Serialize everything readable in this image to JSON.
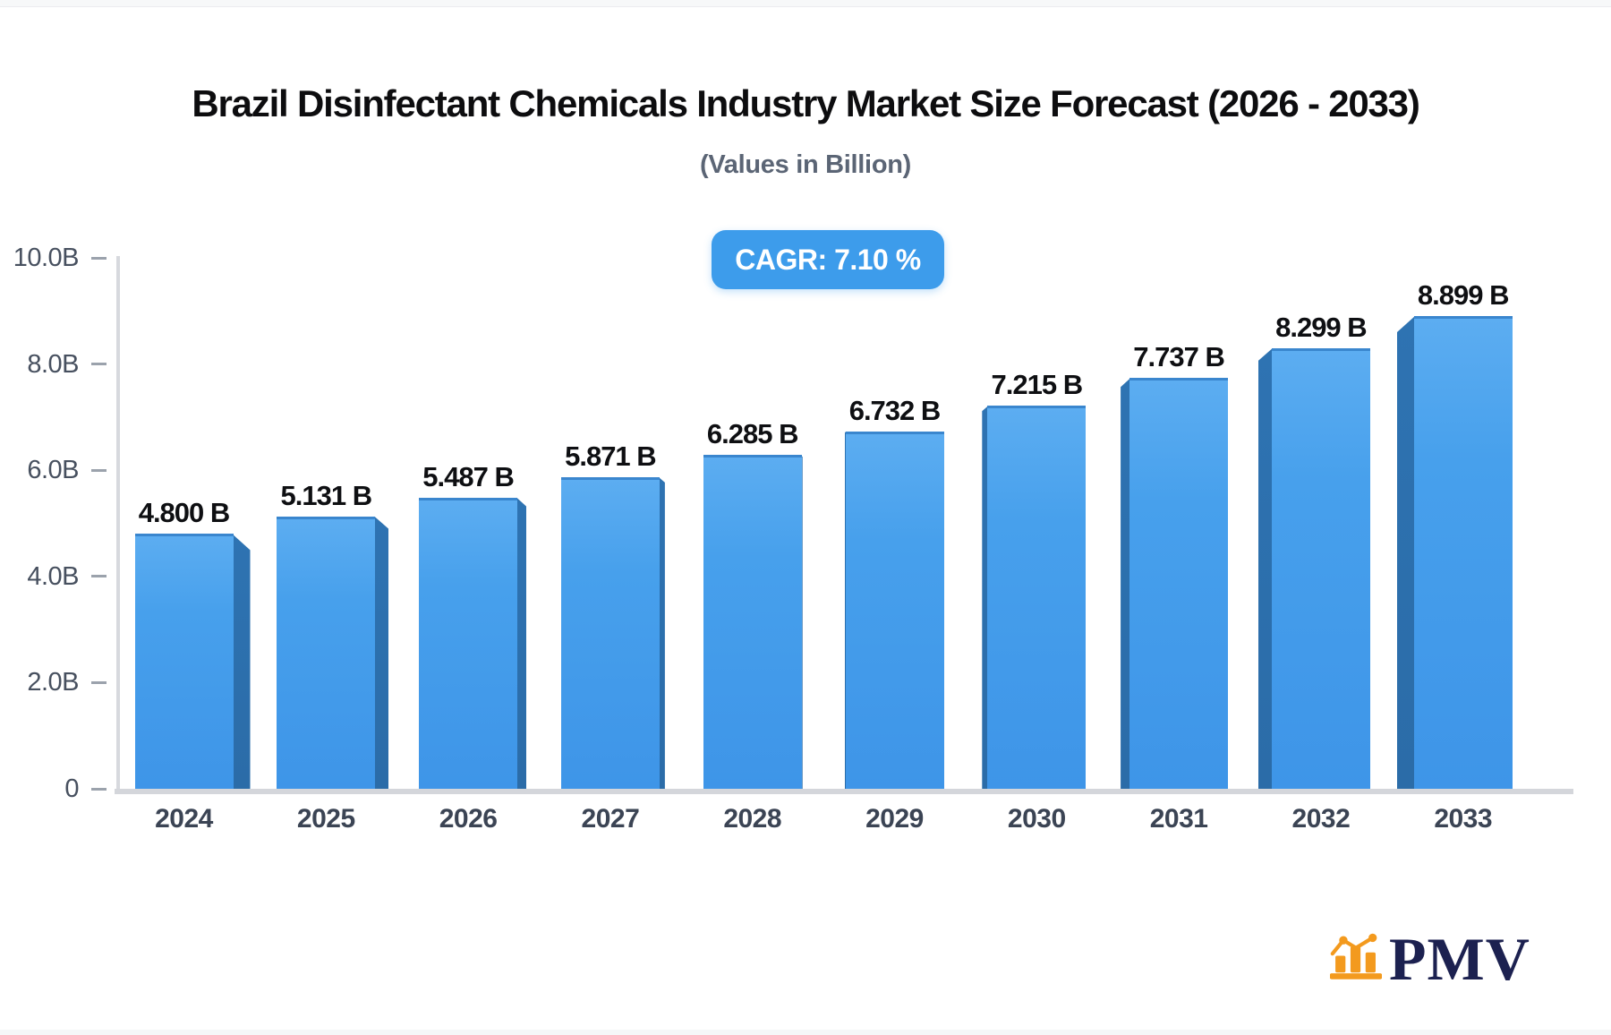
{
  "header": {
    "title": "Brazil Disinfectant Chemicals Industry Market Size Forecast (2026 - 2033)",
    "subtitle": "(Values in Billion)",
    "cagr_label": "CAGR: 7.10 %"
  },
  "chart_data": {
    "type": "bar",
    "title": "Brazil Disinfectant Chemicals Industry Market Size Forecast (2026 - 2033)",
    "subtitle": "(Values in Billion)",
    "annotation": "CAGR: 7.10 %",
    "categories": [
      "2024",
      "2025",
      "2026",
      "2027",
      "2028",
      "2029",
      "2030",
      "2031",
      "2032",
      "2033"
    ],
    "values": [
      4.8,
      5.131,
      5.487,
      5.871,
      6.285,
      6.732,
      7.215,
      7.737,
      8.299,
      8.899
    ],
    "value_labels": [
      "4.800 B",
      "5.131 B",
      "5.487 B",
      "5.871 B",
      "6.285 B",
      "6.732 B",
      "7.215 B",
      "7.737 B",
      "8.299 B",
      "8.899 B"
    ],
    "xlabel": "",
    "ylabel": "",
    "ylim": [
      0,
      10
    ],
    "yticks": [
      {
        "value": 0,
        "label": "0"
      },
      {
        "value": 2,
        "label": "2.0B"
      },
      {
        "value": 4,
        "label": "4.0B"
      },
      {
        "value": 6,
        "label": "6.0B"
      },
      {
        "value": 8,
        "label": "8.0B"
      },
      {
        "value": 10,
        "label": "10.0B"
      }
    ],
    "grid": false,
    "legend_position": "none",
    "bar_style": "3d-column-center-perspective",
    "colors": {
      "bar_front_top": "#5CADF1",
      "bar_front_mid": "#47A0EC",
      "bar_front_bottom": "#3E95E8",
      "bar_top_edge": "#3A86CE",
      "bar_side": "#2E73B2",
      "badge_background": "#3D9CEB",
      "axis_line": "#D4D6DB",
      "tick_text": "#47505F",
      "value_text": "#0E0F12"
    }
  },
  "logo": {
    "text": "PMV",
    "icon": "bar-chart-logo-icon",
    "text_color": "#1C2150",
    "icon_color": "#F39A1E"
  }
}
